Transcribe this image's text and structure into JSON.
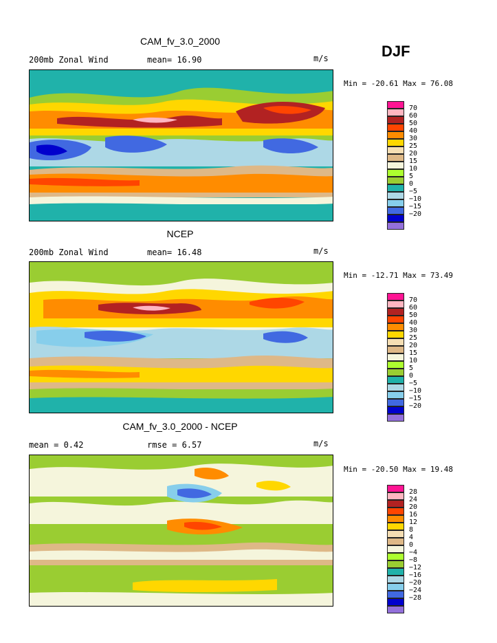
{
  "season": "DJF",
  "panels": [
    {
      "title": "CAM_fv_3.0_2000",
      "left_label": "200mb Zonal Wind",
      "mid_label": "mean=  16.90",
      "units": "m/s",
      "minmax": "Min = -20.61 Max =  76.08",
      "colorbar_labels": [
        "70",
        "60",
        "50",
        "40",
        "30",
        "25",
        "20",
        "15",
        "10",
        "5",
        "0",
        "−5",
        "−10",
        "−15",
        "−20"
      ]
    },
    {
      "title": "NCEP",
      "left_label": "200mb Zonal Wind",
      "mid_label": "mean=  16.48",
      "units": "m/s",
      "minmax": "Min = -12.71 Max =  73.49",
      "colorbar_labels": [
        "70",
        "60",
        "50",
        "40",
        "30",
        "25",
        "20",
        "15",
        "10",
        "5",
        "0",
        "−5",
        "−10",
        "−15",
        "−20"
      ]
    },
    {
      "title": "CAM_fv_3.0_2000 - NCEP",
      "left_label": "mean =   0.42",
      "mid_label": "rmse =   6.57",
      "units": "m/s",
      "minmax": "Min = -20.50 Max =  19.48",
      "colorbar_labels": [
        "28",
        "24",
        "20",
        "16",
        "12",
        "8",
        "4",
        "0",
        "−4",
        "−8",
        "−12",
        "−16",
        "−20",
        "−24",
        "−28"
      ]
    }
  ],
  "colors": {
    "palette": [
      "#ff1493",
      "#ffb6c1",
      "#b22222",
      "#ff4500",
      "#ff8c00",
      "#ffd700",
      "#f5deb3",
      "#deb887",
      "#f5f5dc",
      "#adff2f",
      "#9acd32",
      "#20b2aa",
      "#add8e6",
      "#87ceeb",
      "#4169e1",
      "#0000cd",
      "#9370db"
    ]
  }
}
